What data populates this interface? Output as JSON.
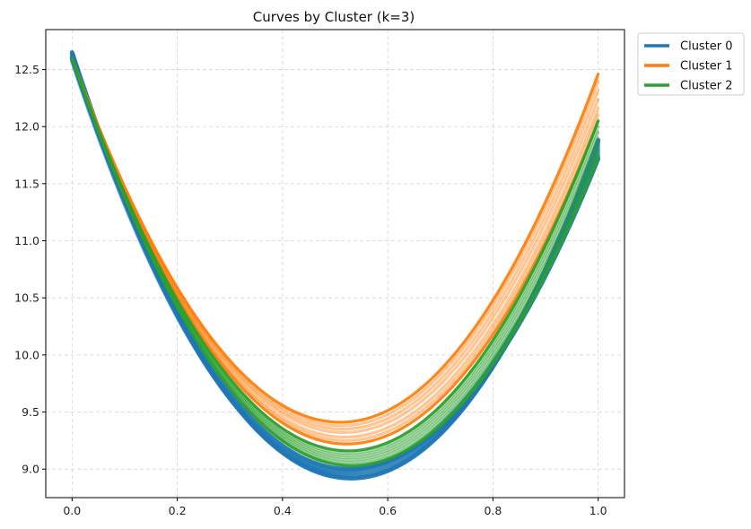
{
  "chart_data": {
    "type": "line",
    "title": "Curves by Cluster (k=3)",
    "xlabel": "",
    "ylabel": "",
    "xlim": [
      -0.05,
      1.05
    ],
    "ylim": [
      8.75,
      12.85
    ],
    "x_ticks": [
      0.0,
      0.2,
      0.4,
      0.6,
      0.8,
      1.0
    ],
    "x_tick_labels": [
      "0.0",
      "0.2",
      "0.4",
      "0.6",
      "0.8",
      "1.0"
    ],
    "y_ticks": [
      9.0,
      9.5,
      10.0,
      10.5,
      11.0,
      11.5,
      12.0,
      12.5
    ],
    "y_tick_labels": [
      "9.0",
      "9.5",
      "10.0",
      "10.5",
      "11.0",
      "11.5",
      "12.0",
      "12.5"
    ],
    "grid": true,
    "legend_position": "outside-top-right",
    "series": [
      {
        "name": "Cluster 0",
        "color": "#1f77b4",
        "curves": [
          {
            "y0": 12.65,
            "vertex_x": 0.53,
            "min": 8.92,
            "y1": 11.88
          },
          {
            "y0": 12.64,
            "vertex_x": 0.528,
            "min": 8.93,
            "y1": 11.86
          },
          {
            "y0": 12.63,
            "vertex_x": 0.526,
            "min": 8.94,
            "y1": 11.84
          },
          {
            "y0": 12.62,
            "vertex_x": 0.524,
            "min": 8.95,
            "y1": 11.82
          },
          {
            "y0": 12.61,
            "vertex_x": 0.522,
            "min": 8.96,
            "y1": 11.8
          },
          {
            "y0": 12.6,
            "vertex_x": 0.52,
            "min": 8.97,
            "y1": 11.78
          },
          {
            "y0": 12.59,
            "vertex_x": 0.518,
            "min": 8.98,
            "y1": 11.76
          },
          {
            "y0": 12.58,
            "vertex_x": 0.516,
            "min": 8.99,
            "y1": 11.74
          },
          {
            "y0": 12.6,
            "vertex_x": 0.525,
            "min": 9.0,
            "y1": 11.72
          }
        ]
      },
      {
        "name": "Cluster 1",
        "color": "#ff7f0e",
        "curves": [
          {
            "y0": 12.6,
            "vertex_x": 0.51,
            "min": 9.41,
            "y1": 12.46
          },
          {
            "y0": 12.6,
            "vertex_x": 0.512,
            "min": 9.38,
            "y1": 12.4
          },
          {
            "y0": 12.6,
            "vertex_x": 0.514,
            "min": 9.35,
            "y1": 12.32
          },
          {
            "y0": 12.6,
            "vertex_x": 0.516,
            "min": 9.32,
            "y1": 12.24
          },
          {
            "y0": 12.6,
            "vertex_x": 0.518,
            "min": 9.28,
            "y1": 12.16
          },
          {
            "y0": 12.6,
            "vertex_x": 0.52,
            "min": 9.25,
            "y1": 12.1
          },
          {
            "y0": 12.6,
            "vertex_x": 0.522,
            "min": 9.22,
            "y1": 12.05
          }
        ]
      },
      {
        "name": "Cluster 2",
        "color": "#2ca02c",
        "curves": [
          {
            "y0": 12.6,
            "vertex_x": 0.525,
            "min": 9.16,
            "y1": 12.05
          },
          {
            "y0": 12.6,
            "vertex_x": 0.525,
            "min": 9.14,
            "y1": 12.0
          },
          {
            "y0": 12.6,
            "vertex_x": 0.526,
            "min": 9.12,
            "y1": 11.95
          },
          {
            "y0": 12.6,
            "vertex_x": 0.527,
            "min": 9.1,
            "y1": 11.9
          },
          {
            "y0": 12.6,
            "vertex_x": 0.528,
            "min": 9.08,
            "y1": 11.85
          },
          {
            "y0": 12.6,
            "vertex_x": 0.529,
            "min": 9.06,
            "y1": 11.8
          },
          {
            "y0": 12.6,
            "vertex_x": 0.53,
            "min": 9.04,
            "y1": 11.75
          },
          {
            "y0": 12.6,
            "vertex_x": 0.531,
            "min": 9.03,
            "y1": 11.73
          }
        ]
      }
    ]
  }
}
